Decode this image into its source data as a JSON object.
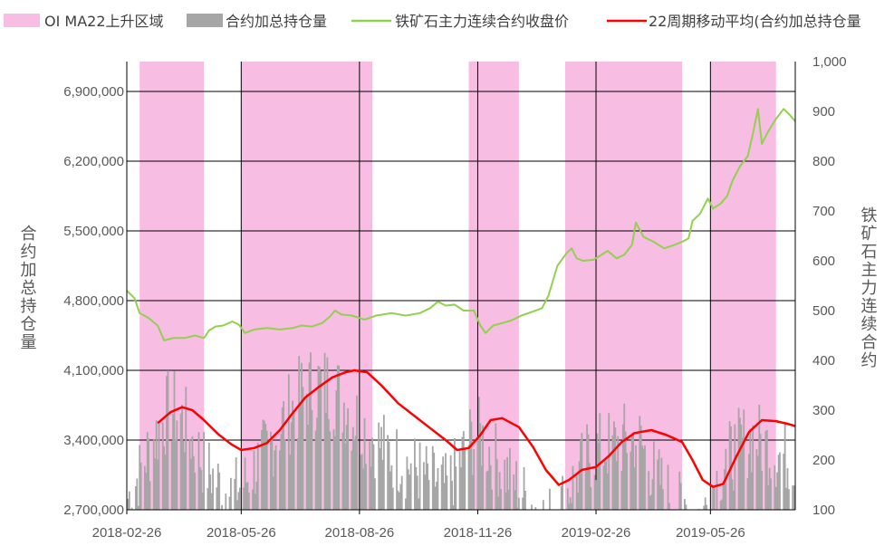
{
  "chart_data": {
    "type": "bar+line",
    "legend": [
      {
        "key": "region",
        "label": "OI MA22上升区域",
        "color": "#f8bde3"
      },
      {
        "key": "oi",
        "label": "合约加总持仓量",
        "color": "#a6a6a6"
      },
      {
        "key": "close",
        "label": "铁矿石主力连续合约收盘价",
        "color": "#92d050"
      },
      {
        "key": "ma",
        "label": "22周期移动平均(合约加总持仓量",
        "color": "#ff0000"
      }
    ],
    "y_left": {
      "title": "合约加总持仓量",
      "min": 2700000,
      "max": 7200000,
      "tick_values": [
        2700000,
        3400000,
        4100000,
        4800000,
        5500000,
        6200000,
        6900000
      ],
      "tick_labels": [
        "2,700,000",
        "3,400,000",
        "4,100,000",
        "4,800,000",
        "5,500,000",
        "6,200,000",
        "6,900,000"
      ]
    },
    "y_right": {
      "title": "铁矿石主力连续合约",
      "min": 100,
      "max": 1000,
      "tick_values": [
        100,
        200,
        300,
        400,
        500,
        600,
        700,
        800,
        900,
        1000
      ],
      "tick_labels": [
        "100",
        "200",
        "300",
        "400",
        "500",
        "600",
        "700",
        "800",
        "900",
        "1,000"
      ]
    },
    "x_axis": {
      "start": "2018-02-26",
      "end": "2019-07-31",
      "tick_dates": [
        "2018-02-26",
        "2018-05-26",
        "2018-08-26",
        "2018-11-26",
        "2019-02-26",
        "2019-05-26"
      ],
      "tick_labels": [
        "2018-02-26",
        "2018-05-26",
        "2018-08-26",
        "2018-11-26",
        "2019-02-26",
        "2019-05-26"
      ]
    },
    "rising_regions": [
      [
        "2018-03-08",
        "2018-04-27"
      ],
      [
        "2018-05-26",
        "2018-09-05"
      ],
      [
        "2018-11-19",
        "2018-12-28"
      ],
      [
        "2019-02-02",
        "2019-05-04"
      ],
      [
        "2019-05-26",
        "2019-07-16"
      ]
    ],
    "close_series": [
      [
        "2018-02-26",
        540
      ],
      [
        "2018-03-04",
        525
      ],
      [
        "2018-03-08",
        495
      ],
      [
        "2018-03-15",
        485
      ],
      [
        "2018-03-22",
        470
      ],
      [
        "2018-03-27",
        440
      ],
      [
        "2018-04-03",
        445
      ],
      [
        "2018-04-12",
        445
      ],
      [
        "2018-04-20",
        450
      ],
      [
        "2018-04-27",
        445
      ],
      [
        "2018-05-01",
        460
      ],
      [
        "2018-05-06",
        468
      ],
      [
        "2018-05-12",
        470
      ],
      [
        "2018-05-19",
        478
      ],
      [
        "2018-05-24",
        472
      ],
      [
        "2018-05-29",
        455
      ],
      [
        "2018-06-05",
        462
      ],
      [
        "2018-06-15",
        465
      ],
      [
        "2018-06-25",
        462
      ],
      [
        "2018-07-05",
        465
      ],
      [
        "2018-07-12",
        470
      ],
      [
        "2018-07-20",
        468
      ],
      [
        "2018-07-28",
        475
      ],
      [
        "2018-08-03",
        488
      ],
      [
        "2018-08-07",
        500
      ],
      [
        "2018-08-12",
        492
      ],
      [
        "2018-08-20",
        490
      ],
      [
        "2018-08-30",
        482
      ],
      [
        "2018-09-08",
        490
      ],
      [
        "2018-09-20",
        495
      ],
      [
        "2018-10-01",
        490
      ],
      [
        "2018-10-12",
        495
      ],
      [
        "2018-10-20",
        505
      ],
      [
        "2018-10-26",
        518
      ],
      [
        "2018-11-01",
        510
      ],
      [
        "2018-11-08",
        512
      ],
      [
        "2018-11-15",
        500
      ],
      [
        "2018-11-23",
        500
      ],
      [
        "2018-11-28",
        470
      ],
      [
        "2018-12-02",
        455
      ],
      [
        "2018-12-08",
        470
      ],
      [
        "2018-12-15",
        475
      ],
      [
        "2018-12-22",
        480
      ],
      [
        "2018-12-30",
        490
      ],
      [
        "2019-01-08",
        498
      ],
      [
        "2019-01-15",
        505
      ],
      [
        "2019-01-20",
        530
      ],
      [
        "2019-01-27",
        590
      ],
      [
        "2019-02-03",
        615
      ],
      [
        "2019-02-07",
        625
      ],
      [
        "2019-02-11",
        605
      ],
      [
        "2019-02-16",
        600
      ],
      [
        "2019-02-24",
        602
      ],
      [
        "2019-03-01",
        610
      ],
      [
        "2019-03-07",
        620
      ],
      [
        "2019-03-14",
        605
      ],
      [
        "2019-03-20",
        612
      ],
      [
        "2019-03-26",
        632
      ],
      [
        "2019-03-29",
        677
      ],
      [
        "2019-04-04",
        648
      ],
      [
        "2019-04-12",
        638
      ],
      [
        "2019-04-20",
        625
      ],
      [
        "2019-04-28",
        632
      ],
      [
        "2019-05-04",
        638
      ],
      [
        "2019-05-09",
        645
      ],
      [
        "2019-05-12",
        680
      ],
      [
        "2019-05-18",
        695
      ],
      [
        "2019-05-24",
        725
      ],
      [
        "2019-05-28",
        705
      ],
      [
        "2019-06-03",
        715
      ],
      [
        "2019-06-08",
        730
      ],
      [
        "2019-06-12",
        760
      ],
      [
        "2019-06-18",
        790
      ],
      [
        "2019-06-24",
        810
      ],
      [
        "2019-06-28",
        855
      ],
      [
        "2019-07-02",
        905
      ],
      [
        "2019-07-05",
        835
      ],
      [
        "2019-07-10",
        860
      ],
      [
        "2019-07-16",
        885
      ],
      [
        "2019-07-22",
        905
      ],
      [
        "2019-07-26",
        895
      ],
      [
        "2019-07-31",
        880
      ]
    ],
    "ma_series": [
      [
        "2018-03-22",
        3570000
      ],
      [
        "2018-04-01",
        3680000
      ],
      [
        "2018-04-10",
        3730000
      ],
      [
        "2018-04-18",
        3700000
      ],
      [
        "2018-04-27",
        3600000
      ],
      [
        "2018-05-08",
        3460000
      ],
      [
        "2018-05-18",
        3360000
      ],
      [
        "2018-05-26",
        3300000
      ],
      [
        "2018-06-05",
        3320000
      ],
      [
        "2018-06-15",
        3370000
      ],
      [
        "2018-06-25",
        3500000
      ],
      [
        "2018-07-05",
        3670000
      ],
      [
        "2018-07-15",
        3830000
      ],
      [
        "2018-07-25",
        3930000
      ],
      [
        "2018-08-05",
        4030000
      ],
      [
        "2018-08-15",
        4080000
      ],
      [
        "2018-08-22",
        4100000
      ],
      [
        "2018-09-01",
        4080000
      ],
      [
        "2018-09-12",
        3950000
      ],
      [
        "2018-09-25",
        3770000
      ],
      [
        "2018-10-08",
        3640000
      ],
      [
        "2018-10-20",
        3520000
      ],
      [
        "2018-11-01",
        3400000
      ],
      [
        "2018-11-10",
        3300000
      ],
      [
        "2018-11-19",
        3320000
      ],
      [
        "2018-11-28",
        3450000
      ],
      [
        "2018-12-06",
        3600000
      ],
      [
        "2018-12-15",
        3620000
      ],
      [
        "2018-12-28",
        3530000
      ],
      [
        "2019-01-08",
        3330000
      ],
      [
        "2019-01-18",
        3100000
      ],
      [
        "2019-01-28",
        2950000
      ],
      [
        "2019-02-05",
        3000000
      ],
      [
        "2019-02-15",
        3100000
      ],
      [
        "2019-02-26",
        3130000
      ],
      [
        "2019-03-08",
        3240000
      ],
      [
        "2019-03-18",
        3380000
      ],
      [
        "2019-03-28",
        3470000
      ],
      [
        "2019-04-10",
        3500000
      ],
      [
        "2019-04-22",
        3450000
      ],
      [
        "2019-05-04",
        3380000
      ],
      [
        "2019-05-12",
        3200000
      ],
      [
        "2019-05-20",
        3000000
      ],
      [
        "2019-05-28",
        2930000
      ],
      [
        "2019-06-05",
        2960000
      ],
      [
        "2019-06-15",
        3230000
      ],
      [
        "2019-06-25",
        3480000
      ],
      [
        "2019-07-05",
        3600000
      ],
      [
        "2019-07-16",
        3590000
      ],
      [
        "2019-07-26",
        3560000
      ],
      [
        "2019-07-31",
        3540000
      ]
    ],
    "oi_envelope": [
      [
        "2018-02-26",
        3000000
      ],
      [
        "2018-03-05",
        3200000
      ],
      [
        "2018-03-12",
        3450000
      ],
      [
        "2018-03-22",
        3750000
      ],
      [
        "2018-04-01",
        4020000
      ],
      [
        "2018-04-10",
        3880000
      ],
      [
        "2018-04-20",
        3600000
      ],
      [
        "2018-04-27",
        3400000
      ],
      [
        "2018-05-05",
        3250000
      ],
      [
        "2018-05-15",
        3100000
      ],
      [
        "2018-05-26",
        3150000
      ],
      [
        "2018-06-05",
        3350000
      ],
      [
        "2018-06-15",
        3550000
      ],
      [
        "2018-06-25",
        3800000
      ],
      [
        "2018-07-05",
        4000000
      ],
      [
        "2018-07-15",
        4180000
      ],
      [
        "2018-07-25",
        4250000
      ],
      [
        "2018-08-05",
        4200000
      ],
      [
        "2018-08-15",
        4050000
      ],
      [
        "2018-08-25",
        3850000
      ],
      [
        "2018-09-05",
        3700000
      ],
      [
        "2018-09-15",
        3550000
      ],
      [
        "2018-09-25",
        3450000
      ],
      [
        "2018-10-08",
        3350000
      ],
      [
        "2018-10-20",
        3250000
      ],
      [
        "2018-11-01",
        3150000
      ],
      [
        "2018-11-10",
        3350000
      ],
      [
        "2018-11-19",
        3650000
      ],
      [
        "2018-11-28",
        3700000
      ],
      [
        "2018-12-08",
        3500000
      ],
      [
        "2018-12-18",
        3300000
      ],
      [
        "2018-12-28",
        3150000
      ],
      [
        "2019-01-08",
        2950000
      ],
      [
        "2019-01-18",
        2820000
      ],
      [
        "2019-01-28",
        2950000
      ],
      [
        "2019-02-08",
        3200000
      ],
      [
        "2019-02-18",
        3450000
      ],
      [
        "2019-02-28",
        3550000
      ],
      [
        "2019-03-10",
        3600000
      ],
      [
        "2019-03-20",
        3650000
      ],
      [
        "2019-03-30",
        3700000
      ],
      [
        "2019-04-10",
        3350000
      ],
      [
        "2019-04-20",
        3150000
      ],
      [
        "2019-04-30",
        3000000
      ],
      [
        "2019-05-10",
        2900000
      ],
      [
        "2019-05-20",
        2850000
      ],
      [
        "2019-05-28",
        3150000
      ],
      [
        "2019-06-08",
        3450000
      ],
      [
        "2019-06-18",
        3600000
      ],
      [
        "2019-06-28",
        3700000
      ],
      [
        "2019-07-08",
        3600000
      ],
      [
        "2019-07-18",
        3500000
      ],
      [
        "2019-07-31",
        3450000
      ]
    ]
  }
}
